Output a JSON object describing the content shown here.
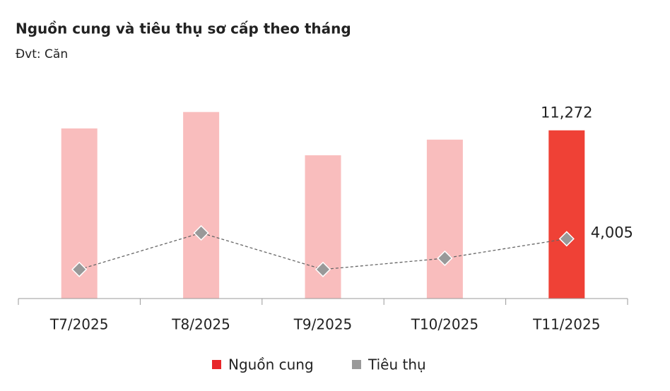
{
  "chart_data": {
    "type": "bar_line",
    "title": "Nguồn cung và tiêu thụ sơ cấp theo tháng",
    "subtitle": "Đvt: Căn",
    "categories": [
      "T7/2025",
      "T8/2025",
      "T9/2025",
      "T10/2025",
      "T11/2025"
    ],
    "series": [
      {
        "name": "Nguồn cung",
        "color": "#e8262a",
        "bar_colors": [
          "#f9bdbd",
          "#f9bdbd",
          "#f9bdbd",
          "#f9bdbd",
          "#ef4136"
        ],
        "values": [
          11400,
          12500,
          9600,
          10650,
          11272
        ],
        "value_labels": [
          null,
          null,
          null,
          null,
          "11,272"
        ]
      },
      {
        "name": "Tiêu thụ",
        "color": "#999999",
        "values": [
          1950,
          4400,
          1950,
          2700,
          4005
        ],
        "value_labels": [
          null,
          null,
          null,
          null,
          "4,005"
        ]
      }
    ],
    "ylim": [
      0,
      14000
    ]
  }
}
